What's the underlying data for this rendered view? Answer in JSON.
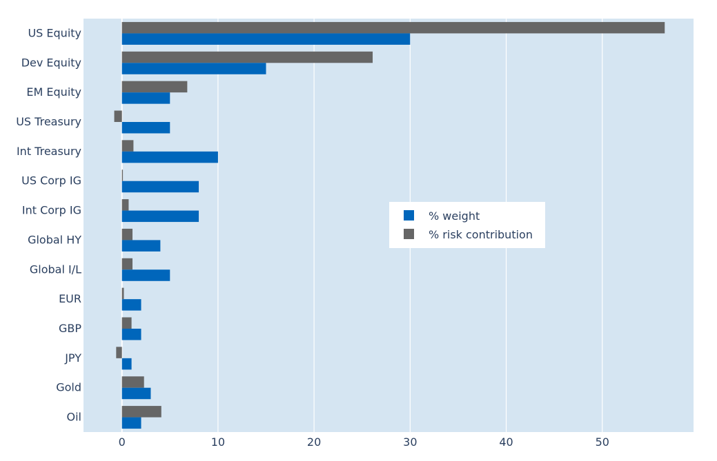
{
  "chart_data": {
    "type": "bar",
    "orientation": "horizontal",
    "categories": [
      "US Equity",
      "Dev Equity",
      "EM Equity",
      "US Treasury",
      "Int Treasury",
      "US Corp IG",
      "Int Corp IG",
      "Global HY",
      "Global I/L",
      "EUR",
      "GBP",
      "JPY",
      "Gold",
      "Oil"
    ],
    "series": [
      {
        "name": "% weight",
        "color": "#0066bb",
        "values": [
          30,
          15,
          5,
          5,
          10,
          8,
          8,
          4,
          5,
          2,
          2,
          1,
          3,
          2
        ]
      },
      {
        "name": "% risk contribution",
        "color": "#666666",
        "values": [
          56.5,
          26.1,
          6.8,
          -0.8,
          1.2,
          0.1,
          0.7,
          1.1,
          1.1,
          0.2,
          1.0,
          -0.6,
          2.3,
          4.1
        ]
      }
    ],
    "x_ticks": [
      0,
      10,
      20,
      30,
      40,
      50
    ],
    "xlim": [
      -4,
      59.5
    ],
    "grid": true,
    "legend_position": "center-right",
    "plot_background": "#d5e5f2",
    "title": "",
    "xlabel": "",
    "ylabel": ""
  }
}
